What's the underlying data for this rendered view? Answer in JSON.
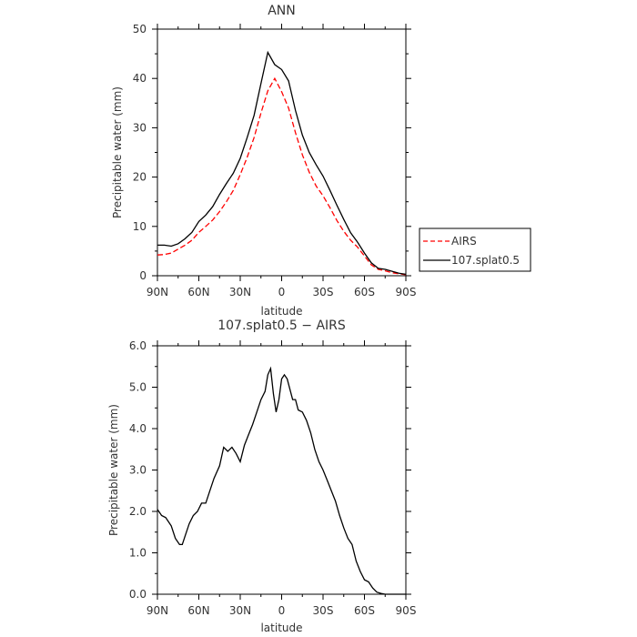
{
  "chart_data": [
    {
      "type": "line",
      "title": "ANN",
      "xlabel": "latitude",
      "ylabel": "Precipitable water (mm)",
      "xlim": [
        90,
        -90
      ],
      "ylim": [
        0,
        50
      ],
      "x_ticks": [
        90,
        60,
        30,
        0,
        -30,
        -60,
        -90
      ],
      "x_tick_labels": [
        "90N",
        "60N",
        "30N",
        "0",
        "30S",
        "60S",
        "90S"
      ],
      "y_ticks": [
        0,
        10,
        20,
        30,
        40,
        50
      ],
      "y_tick_labels": [
        "0",
        "10",
        "20",
        "30",
        "40",
        "50"
      ],
      "legend_position": "right",
      "series": [
        {
          "name": "AIRS",
          "color": "#ff0000",
          "dash": "dashed",
          "x": [
            90,
            85,
            80,
            75,
            70,
            65,
            60,
            55,
            50,
            45,
            40,
            35,
            30,
            25,
            20,
            15,
            10,
            5,
            0,
            -5,
            -10,
            -15,
            -20,
            -25,
            -30,
            -35,
            -40,
            -45,
            -50,
            -55,
            -60,
            -65,
            -70,
            -75,
            -80,
            -85,
            -90
          ],
          "values": [
            4.2,
            4.3,
            4.6,
            5.4,
            6.2,
            7.2,
            8.8,
            10.0,
            11.3,
            13.0,
            15.0,
            17.3,
            20.5,
            24.0,
            28.0,
            33.0,
            37.5,
            40.0,
            37.3,
            34.0,
            29.0,
            24.5,
            21.0,
            18.2,
            16.2,
            13.8,
            11.2,
            9.0,
            7.2,
            5.8,
            4.0,
            2.2,
            1.3,
            1.0,
            0.6,
            0.4,
            0.2
          ]
        },
        {
          "name": "107.splat0.5",
          "color": "#000000",
          "dash": "solid",
          "x": [
            90,
            85,
            80,
            75,
            70,
            65,
            60,
            55,
            50,
            45,
            40,
            35,
            30,
            25,
            20,
            15,
            10,
            5,
            0,
            -5,
            -10,
            -15,
            -20,
            -25,
            -30,
            -35,
            -40,
            -45,
            -50,
            -55,
            -60,
            -65,
            -70,
            -75,
            -80,
            -85,
            -90
          ],
          "values": [
            6.2,
            6.2,
            6.0,
            6.5,
            7.5,
            8.8,
            11.0,
            12.3,
            14.0,
            16.5,
            18.7,
            20.8,
            23.8,
            28.0,
            32.5,
            39.0,
            45.3,
            42.8,
            41.8,
            39.5,
            33.5,
            28.5,
            25.0,
            22.5,
            20.2,
            17.3,
            14.3,
            11.4,
            8.7,
            6.8,
            4.6,
            2.6,
            1.5,
            1.3,
            0.9,
            0.5,
            0.3
          ]
        }
      ]
    },
    {
      "type": "line",
      "title": "107.splat0.5 − AIRS",
      "xlabel": "latitude",
      "ylabel": "Precipitable water (mm)",
      "xlim": [
        90,
        -90
      ],
      "ylim": [
        0,
        6
      ],
      "x_ticks": [
        90,
        60,
        30,
        0,
        -30,
        -60,
        -90
      ],
      "x_tick_labels": [
        "90N",
        "60N",
        "30N",
        "0",
        "30S",
        "60S",
        "90S"
      ],
      "y_ticks": [
        0,
        1,
        2,
        3,
        4,
        5,
        6
      ],
      "y_tick_labels": [
        "0.0",
        "1.0",
        "2.0",
        "3.0",
        "4.0",
        "5.0",
        "6.0"
      ],
      "series": [
        {
          "color": "#000000",
          "dash": "solid",
          "x": [
            90,
            87,
            84,
            80,
            77,
            74,
            72,
            70,
            67,
            64,
            61,
            58,
            55,
            52,
            49,
            45,
            42,
            39,
            36,
            33,
            30,
            27,
            24,
            21,
            18,
            15,
            12,
            10,
            8,
            6,
            4,
            2,
            0,
            -2,
            -4,
            -6,
            -8,
            -10,
            -12,
            -15,
            -18,
            -21,
            -24,
            -27,
            -30,
            -33,
            -36,
            -39,
            -42,
            -45,
            -48,
            -51,
            -54,
            -57,
            -60,
            -63,
            -66,
            -69,
            -72,
            -75,
            -78,
            -81,
            -84,
            -87,
            -90
          ],
          "values": [
            2.05,
            1.9,
            1.85,
            1.65,
            1.35,
            1.2,
            1.2,
            1.4,
            1.7,
            1.9,
            2.0,
            2.2,
            2.2,
            2.5,
            2.8,
            3.1,
            3.55,
            3.45,
            3.55,
            3.4,
            3.2,
            3.6,
            3.85,
            4.1,
            4.4,
            4.7,
            4.9,
            5.3,
            5.45,
            4.85,
            4.4,
            4.7,
            5.2,
            5.3,
            5.2,
            4.95,
            4.7,
            4.7,
            4.45,
            4.4,
            4.2,
            3.9,
            3.5,
            3.2,
            3.0,
            2.75,
            2.5,
            2.25,
            1.9,
            1.6,
            1.35,
            1.2,
            0.8,
            0.55,
            0.35,
            0.3,
            0.15,
            0.05,
            0.02,
            0.0,
            0.0,
            0.0,
            0.0,
            0.0,
            0.0
          ]
        }
      ]
    }
  ]
}
